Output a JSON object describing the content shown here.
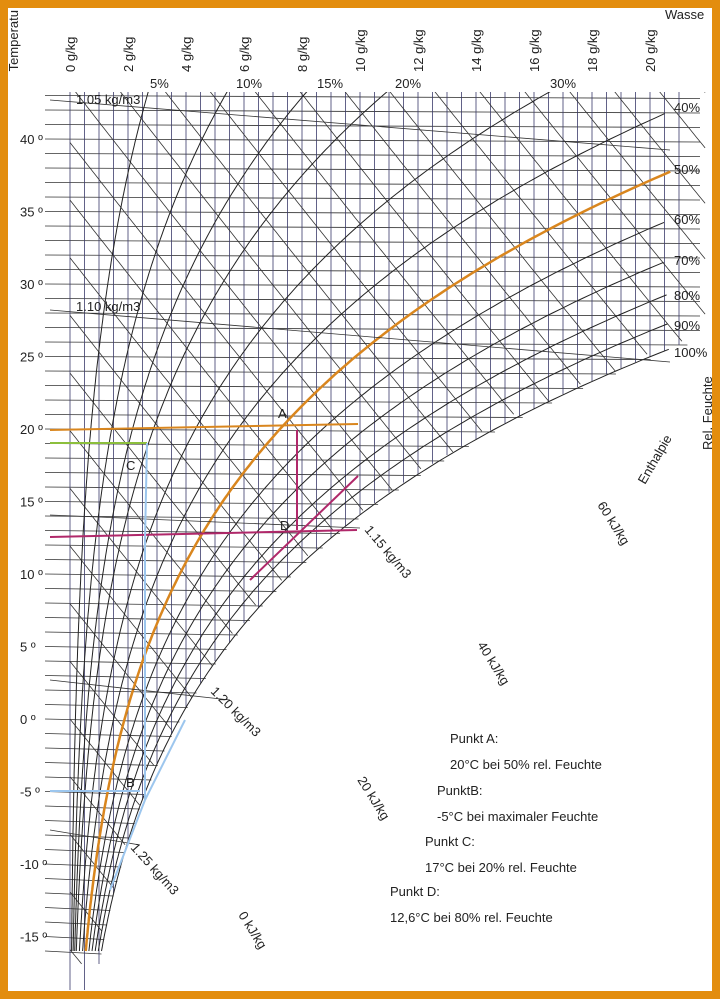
{
  "header": {
    "left": "Temperatu",
    "right": "Wasse"
  },
  "water_content_labels": [
    "0 g/kg",
    "2 g/kg",
    "4 g/kg",
    "6 g/kg",
    "8 g/kg",
    "10 g/kg",
    "12 g/kg",
    "14 g/kg",
    "16 g/kg",
    "18 g/kg",
    "20 g/kg"
  ],
  "rh_top_labels": [
    "5%",
    "10%",
    "15%",
    "20%",
    "30%"
  ],
  "rh_right_labels": [
    "40%",
    "50%",
    "60%",
    "70%",
    "80%",
    "90%",
    "100%"
  ],
  "side_label": "Rel. Feuchte",
  "temperature_labels": [
    "40 º",
    "35 º",
    "30 º",
    "25 º",
    "20 º",
    "15 º",
    "10 º",
    "5 º",
    "0 º",
    "-5 º",
    "-10 º",
    "-15 º"
  ],
  "density_labels": [
    "1.05 kg/m3",
    "1.10 kg/m3",
    "1.15 kg/m3",
    "1.20 kg/m3",
    "1.25 kg/m3"
  ],
  "enthalpy_labels": [
    "0 kJ/kg",
    "20 kJ/kg",
    "40 kJ/kg",
    "60 kJ/kg",
    "Enthalpie"
  ],
  "point_letters": [
    "A",
    "B",
    "C",
    "D"
  ],
  "legend": [
    {
      "title": "Punkt A:",
      "text": "20°C bei 50% rel. Feuchte"
    },
    {
      "title": "PunktB:",
      "text": "-5°C bei maximaler Feuchte"
    },
    {
      "title": "Punkt C:",
      "text": "17°C bei 20% rel. Feuchte"
    },
    {
      "title": "Punkt D:",
      "text": "12,6°C bei 80% rel. Feuchte"
    }
  ]
}
